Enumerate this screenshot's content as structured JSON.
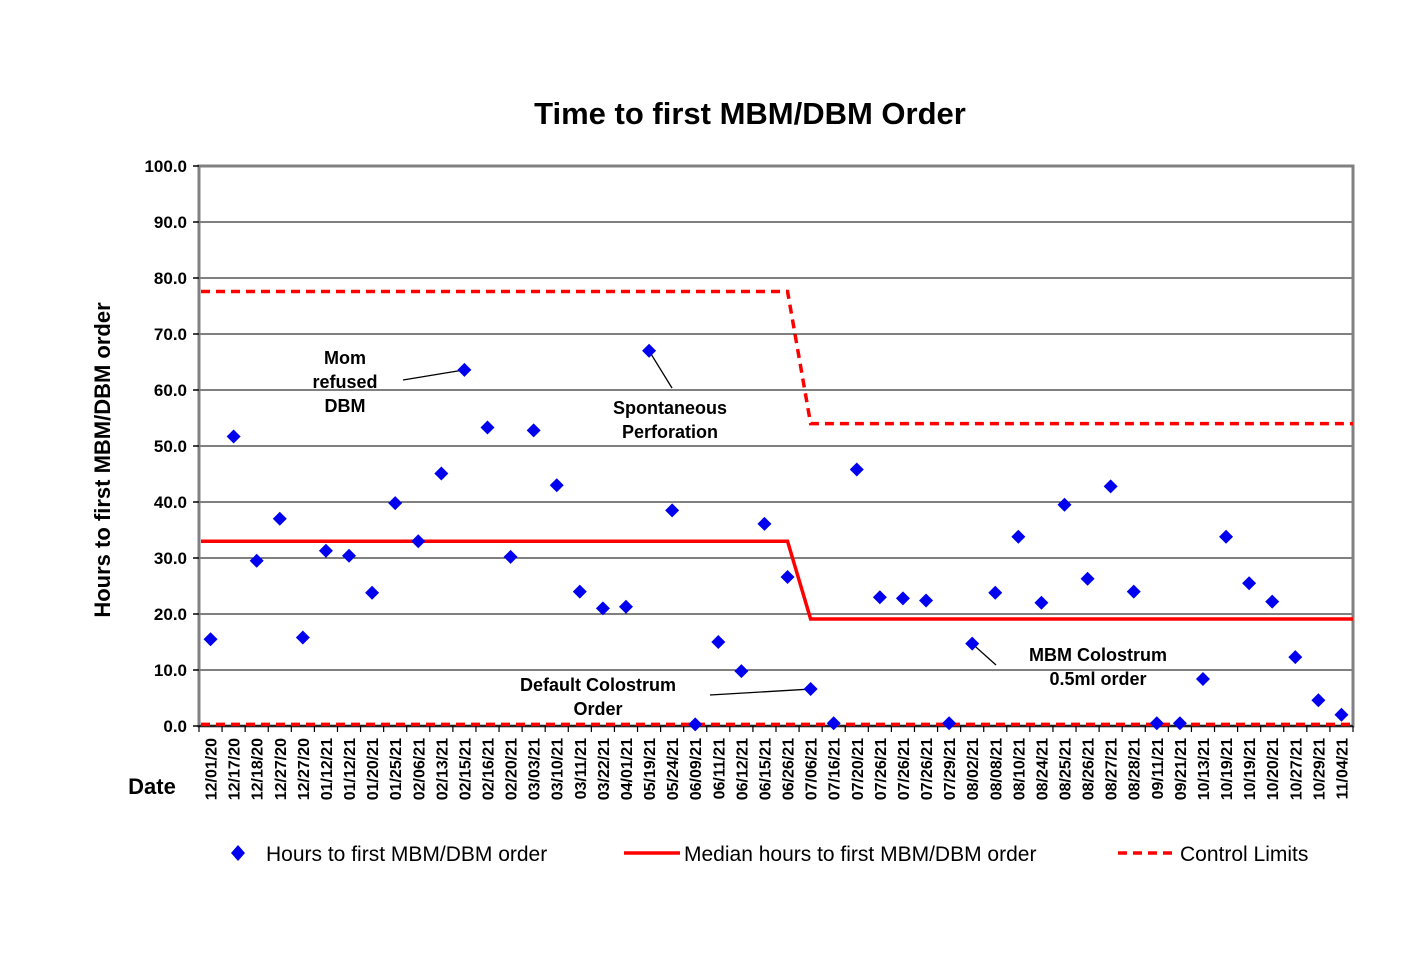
{
  "chart_data": {
    "type": "scatter",
    "title": "Time to first MBM/DBM Order",
    "xlabel": "Date",
    "ylabel": "Hours to first MBM/DBM order",
    "ylim": [
      0,
      100
    ],
    "yticks": [
      "0.0",
      "10.0",
      "20.0",
      "30.0",
      "40.0",
      "50.0",
      "60.0",
      "70.0",
      "80.0",
      "90.0",
      "100.0"
    ],
    "grid": "horizontal",
    "legend_position": "bottom",
    "categories": [
      "12/01/20",
      "12/17/20",
      "12/18/20",
      "12/27/20",
      "12/27/20",
      "01/12/21",
      "01/12/21",
      "01/20/21",
      "01/25/21",
      "02/06/21",
      "02/13/21",
      "02/15/21",
      "02/16/21",
      "02/20/21",
      "03/03/21",
      "03/10/21",
      "03/11/21",
      "03/22/21",
      "04/01/21",
      "05/19/21",
      "05/24/21",
      "06/09/21",
      "06/11/21",
      "06/12/21",
      "06/15/21",
      "06/26/21",
      "07/06/21",
      "07/16/21",
      "07/20/21",
      "07/26/21",
      "07/26/21",
      "07/26/21",
      "07/29/21",
      "08/02/21",
      "08/08/21",
      "08/10/21",
      "08/24/21",
      "08/25/21",
      "08/26/21",
      "08/27/21",
      "08/28/21",
      "09/11/21",
      "09/21/21",
      "10/13/21",
      "10/19/21",
      "10/19/21",
      "10/20/21",
      "10/27/21",
      "10/29/21",
      "11/04/21"
    ],
    "series": [
      {
        "name": "Hours to first MBM/DBM order",
        "kind": "points",
        "color": "#0000ee",
        "marker": "diamond",
        "values": [
          15.5,
          51.7,
          29.5,
          37.0,
          15.8,
          31.3,
          30.4,
          23.8,
          39.8,
          33.0,
          45.1,
          63.6,
          53.3,
          30.2,
          52.8,
          43.0,
          24.0,
          21.0,
          21.3,
          67.0,
          38.5,
          0.3,
          15.0,
          9.8,
          36.1,
          26.6,
          6.6,
          0.5,
          45.8,
          23.0,
          22.8,
          22.4,
          0.5,
          14.7,
          23.8,
          33.8,
          22.0,
          39.5,
          26.3,
          42.8,
          24.0,
          0.5,
          0.5,
          8.4,
          33.8,
          25.5,
          22.2,
          12.3,
          4.6,
          2.0
        ]
      },
      {
        "name": "Median hours to first MBM/DBM order",
        "kind": "step-line",
        "color": "#ff0000",
        "dash": false,
        "segments": [
          {
            "from": "12/01/20",
            "to": "06/26/21",
            "value": 33.0
          },
          {
            "from": "07/06/21",
            "to": "11/04/21",
            "value": 19.1
          }
        ]
      },
      {
        "name": "Control Limits",
        "kind": "step-line",
        "color": "#ff0000",
        "dash": true,
        "segments": [
          {
            "from": "12/01/20",
            "to": "06/26/21",
            "value": 77.6
          },
          {
            "from": "07/06/21",
            "to": "11/04/21",
            "value": 54.0
          }
        ],
        "lower_segments": [
          {
            "from": "12/01/20",
            "to": "11/04/21",
            "value": 0.3
          }
        ]
      }
    ],
    "annotations": [
      {
        "lines": [
          "Mom",
          "refused",
          "DBM"
        ],
        "target_index": 11
      },
      {
        "lines": [
          "Spontaneous",
          "Perforation"
        ],
        "target_index": 19
      },
      {
        "lines": [
          "Default Colostrum",
          "Order"
        ],
        "target_index": 26
      },
      {
        "lines": [
          "MBM Colostrum",
          "0.5ml order"
        ],
        "target_index": 33
      }
    ]
  }
}
